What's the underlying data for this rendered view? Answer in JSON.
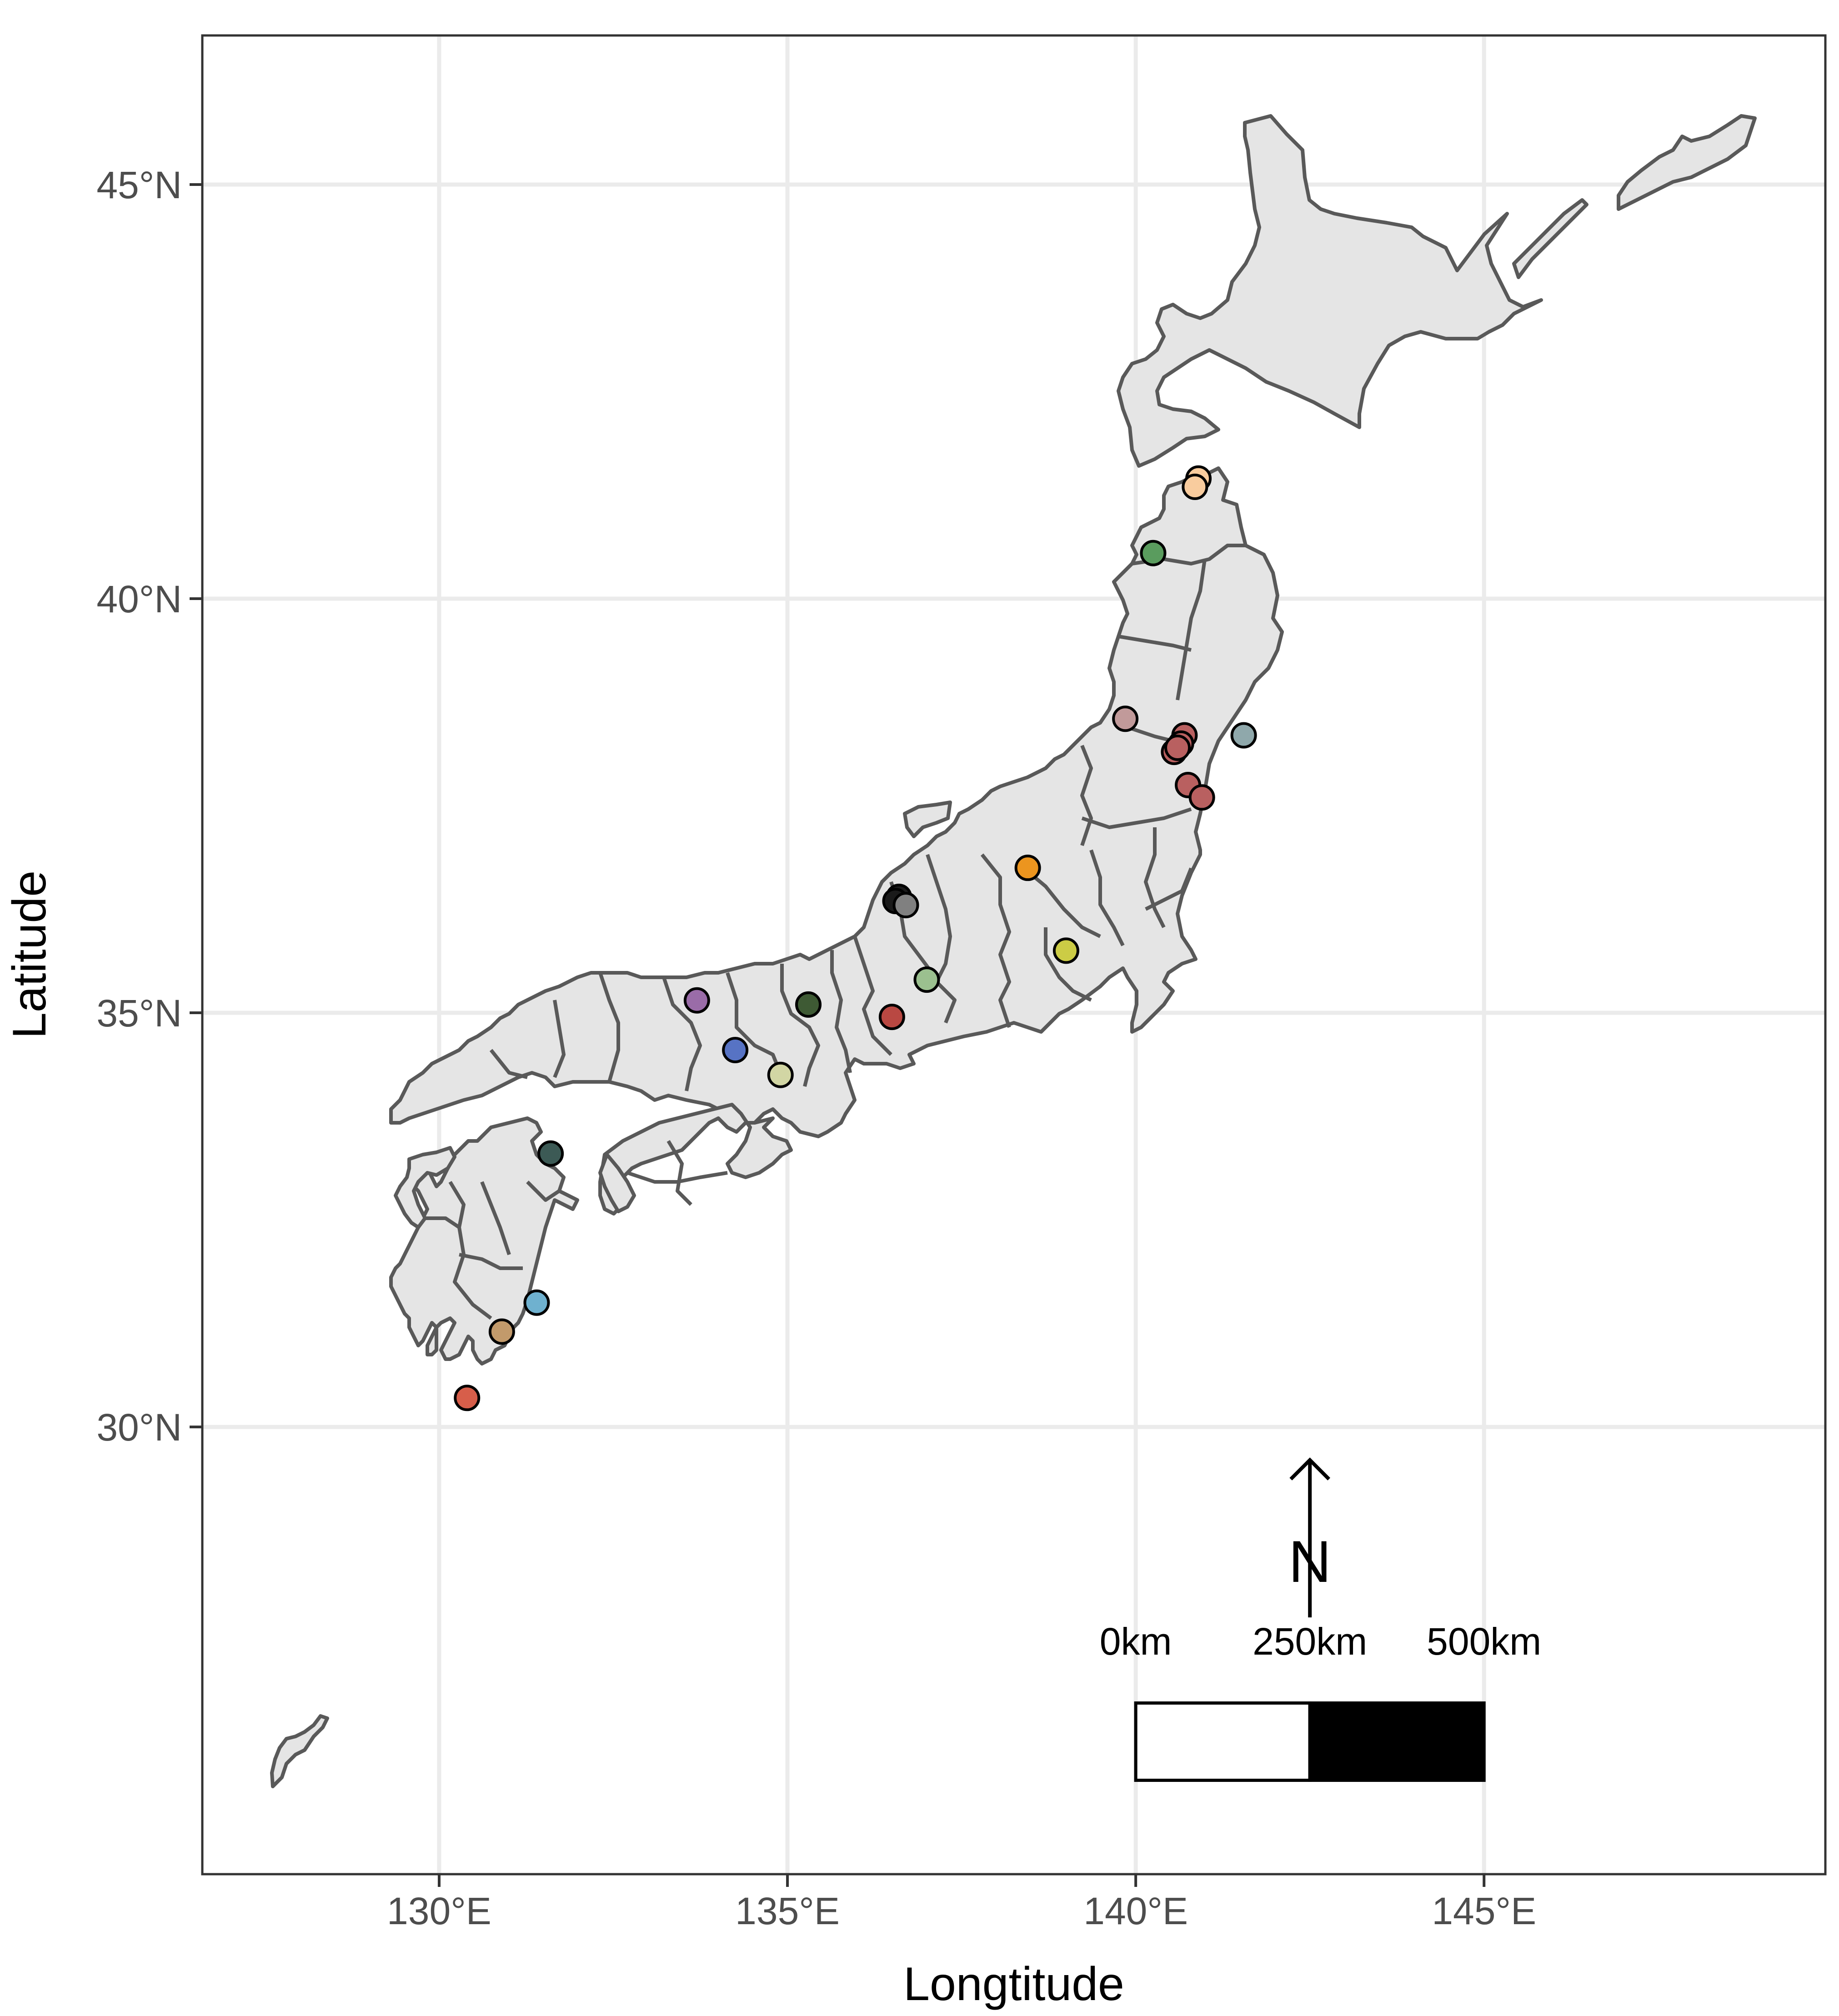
{
  "map": {
    "xlabel": "Longtitude",
    "ylabel": "Latitude",
    "x_range": [
      126.6,
      149.9
    ],
    "y_range": [
      24.6,
      46.8
    ],
    "x_ticks": [
      {
        "value": 130,
        "label": "130°E"
      },
      {
        "value": 135,
        "label": "135°E"
      },
      {
        "value": 140,
        "label": "140°E"
      },
      {
        "value": 145,
        "label": "145°E"
      }
    ],
    "y_ticks": [
      {
        "value": 30,
        "label": "30°N"
      },
      {
        "value": 35,
        "label": "35°N"
      },
      {
        "value": 40,
        "label": "40°N"
      },
      {
        "value": 45,
        "label": "45°N"
      }
    ],
    "grid": true,
    "panel_border_color": "#333333",
    "land_fill": "#e5e5e5",
    "land_stroke": "#595959"
  },
  "scale_bar": {
    "labels": [
      "0km",
      "250km",
      "500km"
    ],
    "start_lon": 140.0,
    "end_lon": 145.0,
    "lat": 26.2,
    "label_lat": 27.25,
    "segment_colors": [
      "#ffffff",
      "#000000"
    ]
  },
  "north_arrow": {
    "label": "N",
    "lon": 142.5,
    "lat_base": 27.7,
    "lat_tip": 29.6
  },
  "chart_data": {
    "type": "scatter",
    "xlabel": "Longtitude",
    "ylabel": "Latitude",
    "points": [
      {
        "lon": 140.9,
        "lat": 41.45,
        "color": "#f9cc9e"
      },
      {
        "lon": 140.85,
        "lat": 41.35,
        "color": "#f9cc9e"
      },
      {
        "lon": 140.25,
        "lat": 40.55,
        "color": "#5a9c5e"
      },
      {
        "lon": 139.85,
        "lat": 38.55,
        "color": "#c19a9a"
      },
      {
        "lon": 140.7,
        "lat": 38.35,
        "color": "#b96060"
      },
      {
        "lon": 140.65,
        "lat": 38.25,
        "color": "#b96060"
      },
      {
        "lon": 140.55,
        "lat": 38.15,
        "color": "#b96060"
      },
      {
        "lon": 140.6,
        "lat": 38.2,
        "color": "#b96060"
      },
      {
        "lon": 141.55,
        "lat": 38.35,
        "color": "#8fa8ab"
      },
      {
        "lon": 140.75,
        "lat": 37.75,
        "color": "#b96060"
      },
      {
        "lon": 140.95,
        "lat": 37.6,
        "color": "#b96060"
      },
      {
        "lon": 138.45,
        "lat": 36.75,
        "color": "#ec951f"
      },
      {
        "lon": 136.6,
        "lat": 36.4,
        "color": "#1a1a1a"
      },
      {
        "lon": 136.55,
        "lat": 36.35,
        "color": "#1a1a1a"
      },
      {
        "lon": 136.7,
        "lat": 36.3,
        "color": "#808080"
      },
      {
        "lon": 139.0,
        "lat": 35.75,
        "color": "#cccc45"
      },
      {
        "lon": 137.0,
        "lat": 35.4,
        "color": "#9bc08f"
      },
      {
        "lon": 133.7,
        "lat": 35.15,
        "color": "#9a6ca8"
      },
      {
        "lon": 135.3,
        "lat": 35.1,
        "color": "#3e5a34"
      },
      {
        "lon": 136.5,
        "lat": 34.95,
        "color": "#b94842"
      },
      {
        "lon": 134.25,
        "lat": 34.55,
        "color": "#5773c4"
      },
      {
        "lon": 134.9,
        "lat": 34.25,
        "color": "#d2d6a4"
      },
      {
        "lon": 131.6,
        "lat": 33.3,
        "color": "#3c5a55"
      },
      {
        "lon": 131.4,
        "lat": 31.5,
        "color": "#6fb1cf"
      },
      {
        "lon": 130.9,
        "lat": 31.15,
        "color": "#c29a6b"
      },
      {
        "lon": 130.4,
        "lat": 30.35,
        "color": "#d75e4a"
      }
    ]
  }
}
